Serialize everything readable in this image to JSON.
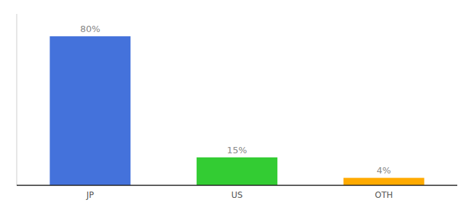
{
  "chart_data": {
    "type": "bar",
    "categories": [
      "JP",
      "US",
      "OTH"
    ],
    "values": [
      80,
      15,
      4
    ],
    "value_labels": [
      "80%",
      "15%",
      "4%"
    ],
    "colors": [
      "#4472db",
      "#33cc33",
      "#ffaa00"
    ],
    "ylim": [
      0,
      92
    ],
    "data_labels": true,
    "tick_labels": "x",
    "grid": false
  }
}
